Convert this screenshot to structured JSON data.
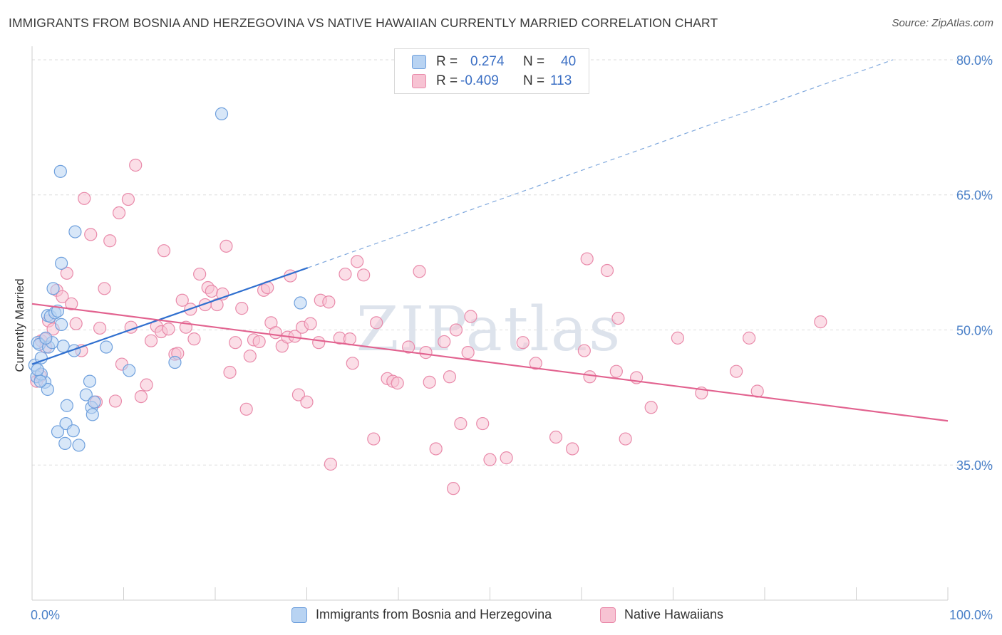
{
  "header": {
    "title": "IMMIGRANTS FROM BOSNIA AND HERZEGOVINA VS NATIVE HAWAIIAN CURRENTLY MARRIED CORRELATION CHART",
    "source": "Source: ZipAtlas.com"
  },
  "watermark": "ZIPatlas",
  "legend_stats": {
    "r_label": "R =",
    "n_label": "N =",
    "series1": {
      "r": "0.274",
      "n": "40"
    },
    "series2": {
      "r": "-0.409",
      "n": "113"
    }
  },
  "colors": {
    "blue_fill": "#b8d3f2",
    "blue_stroke": "#6fa0dd",
    "blue_line": "#2f6fcf",
    "pink_fill": "#f7c3d3",
    "pink_stroke": "#e98aaa",
    "pink_line": "#e2628f",
    "axis_text": "#4a80c8",
    "grid": "#dddddd"
  },
  "chart_data": {
    "type": "scatter",
    "title": "IMMIGRANTS FROM BOSNIA AND HERZEGOVINA VS NATIVE HAWAIIAN CURRENTLY MARRIED CORRELATION CHART",
    "xlabel": "",
    "ylabel": "Currently Married",
    "xlim": [
      0,
      100
    ],
    "ylim": [
      20,
      81.5
    ],
    "x_tick_labels": [
      "0.0%",
      "100.0%"
    ],
    "y_ticks": [
      35,
      50,
      65,
      80
    ],
    "y_tick_labels": [
      "35.0%",
      "50.0%",
      "65.0%",
      "80.0%"
    ],
    "grid": true,
    "series": [
      {
        "name": "Immigrants from Bosnia and Herzegovina",
        "color": "blue",
        "r": 0.274,
        "n": 40,
        "trend": {
          "x0": 0,
          "y0": 46.2,
          "x1": 30.1,
          "y1": 56.9,
          "dashed_to_x": 94,
          "dashed_to_y": 80.0
        },
        "points": [
          [
            0.5,
            44.8
          ],
          [
            0.3,
            46.1
          ],
          [
            0.6,
            48.6
          ],
          [
            0.8,
            48.4
          ],
          [
            1.0,
            46.9
          ],
          [
            1.4,
            44.2
          ],
          [
            1.7,
            43.4
          ],
          [
            1.8,
            48.1
          ],
          [
            1.7,
            51.6
          ],
          [
            2.0,
            51.5
          ],
          [
            2.3,
            54.6
          ],
          [
            2.5,
            51.9
          ],
          [
            2.8,
            52.1
          ],
          [
            3.2,
            50.6
          ],
          [
            3.4,
            48.2
          ],
          [
            3.2,
            57.4
          ],
          [
            3.1,
            67.6
          ],
          [
            3.8,
            41.6
          ],
          [
            3.7,
            39.6
          ],
          [
            3.6,
            37.4
          ],
          [
            2.8,
            38.7
          ],
          [
            4.5,
            38.8
          ],
          [
            5.1,
            37.2
          ],
          [
            4.6,
            47.7
          ],
          [
            4.7,
            60.9
          ],
          [
            5.9,
            42.8
          ],
          [
            6.3,
            44.3
          ],
          [
            6.5,
            41.4
          ],
          [
            6.6,
            40.6
          ],
          [
            6.8,
            42.0
          ],
          [
            8.1,
            48.1
          ],
          [
            10.6,
            45.5
          ],
          [
            15.6,
            46.4
          ],
          [
            20.7,
            74.0
          ],
          [
            29.3,
            53.0
          ],
          [
            1.0,
            45.1
          ],
          [
            0.6,
            45.6
          ],
          [
            2.2,
            48.6
          ],
          [
            0.9,
            44.3
          ],
          [
            1.5,
            49.1
          ]
        ]
      },
      {
        "name": "Native Hawaiians",
        "color": "pink",
        "r": -0.409,
        "n": 113,
        "trend": {
          "x0": 0,
          "y0": 52.9,
          "x1": 100,
          "y1": 39.9
        },
        "points": [
          [
            0.5,
            44.3
          ],
          [
            0.9,
            44.9
          ],
          [
            1.0,
            48.8
          ],
          [
            1.5,
            48.1
          ],
          [
            1.4,
            49.0
          ],
          [
            1.8,
            51.0
          ],
          [
            2.3,
            50.1
          ],
          [
            2.7,
            54.4
          ],
          [
            3.3,
            53.7
          ],
          [
            3.8,
            56.3
          ],
          [
            4.3,
            52.9
          ],
          [
            4.8,
            50.7
          ],
          [
            5.4,
            47.7
          ],
          [
            5.7,
            64.6
          ],
          [
            6.4,
            60.6
          ],
          [
            7.0,
            42.0
          ],
          [
            7.4,
            50.2
          ],
          [
            7.9,
            54.6
          ],
          [
            8.5,
            59.9
          ],
          [
            9.1,
            42.1
          ],
          [
            9.5,
            63.0
          ],
          [
            9.8,
            46.2
          ],
          [
            10.5,
            64.5
          ],
          [
            10.8,
            50.3
          ],
          [
            11.3,
            68.3
          ],
          [
            11.9,
            42.6
          ],
          [
            12.5,
            43.9
          ],
          [
            13.0,
            48.8
          ],
          [
            13.6,
            50.4
          ],
          [
            14.1,
            49.8
          ],
          [
            14.4,
            58.8
          ],
          [
            14.9,
            50.1
          ],
          [
            15.6,
            47.3
          ],
          [
            15.9,
            47.4
          ],
          [
            16.4,
            53.3
          ],
          [
            16.8,
            50.3
          ],
          [
            17.3,
            52.3
          ],
          [
            17.7,
            49.0
          ],
          [
            18.3,
            56.2
          ],
          [
            18.9,
            52.8
          ],
          [
            19.2,
            54.7
          ],
          [
            19.6,
            54.3
          ],
          [
            20.2,
            52.8
          ],
          [
            20.8,
            54.0
          ],
          [
            21.2,
            59.3
          ],
          [
            21.6,
            45.3
          ],
          [
            22.2,
            48.6
          ],
          [
            22.9,
            52.4
          ],
          [
            23.4,
            41.2
          ],
          [
            23.8,
            47.1
          ],
          [
            24.2,
            48.9
          ],
          [
            24.8,
            48.7
          ],
          [
            25.3,
            54.4
          ],
          [
            25.7,
            54.7
          ],
          [
            26.1,
            50.8
          ],
          [
            26.6,
            49.7
          ],
          [
            27.3,
            48.2
          ],
          [
            27.9,
            49.2
          ],
          [
            28.2,
            56.0
          ],
          [
            28.7,
            49.3
          ],
          [
            29.1,
            42.8
          ],
          [
            29.5,
            50.3
          ],
          [
            30.0,
            42.0
          ],
          [
            30.4,
            50.7
          ],
          [
            31.3,
            48.6
          ],
          [
            31.5,
            53.3
          ],
          [
            32.4,
            53.1
          ],
          [
            32.6,
            35.1
          ],
          [
            33.6,
            49.1
          ],
          [
            34.2,
            56.2
          ],
          [
            34.7,
            49.0
          ],
          [
            35.0,
            46.3
          ],
          [
            35.5,
            57.6
          ],
          [
            36.2,
            56.1
          ],
          [
            37.3,
            37.9
          ],
          [
            37.6,
            50.8
          ],
          [
            38.8,
            44.6
          ],
          [
            39.4,
            44.3
          ],
          [
            39.9,
            44.1
          ],
          [
            41.1,
            48.1
          ],
          [
            42.3,
            56.5
          ],
          [
            43.0,
            47.5
          ],
          [
            43.4,
            44.2
          ],
          [
            44.1,
            36.8
          ],
          [
            45.0,
            48.7
          ],
          [
            45.6,
            44.8
          ],
          [
            46.0,
            32.4
          ],
          [
            46.3,
            50.0
          ],
          [
            46.8,
            39.6
          ],
          [
            47.6,
            47.5
          ],
          [
            47.9,
            51.5
          ],
          [
            49.2,
            39.6
          ],
          [
            50.0,
            35.6
          ],
          [
            51.8,
            35.8
          ],
          [
            53.6,
            48.6
          ],
          [
            55.0,
            46.3
          ],
          [
            57.2,
            38.1
          ],
          [
            59.0,
            36.8
          ],
          [
            60.3,
            47.7
          ],
          [
            60.6,
            57.9
          ],
          [
            60.9,
            44.8
          ],
          [
            62.8,
            56.6
          ],
          [
            63.8,
            45.4
          ],
          [
            64.0,
            51.3
          ],
          [
            64.8,
            37.9
          ],
          [
            66.0,
            44.7
          ],
          [
            67.6,
            41.4
          ],
          [
            70.5,
            49.1
          ],
          [
            73.1,
            43.0
          ],
          [
            76.9,
            45.4
          ],
          [
            78.3,
            49.1
          ],
          [
            79.2,
            43.2
          ],
          [
            86.1,
            50.9
          ]
        ]
      }
    ]
  },
  "bottom_legend": {
    "series1": "Immigrants from Bosnia and Herzegovina",
    "series2": "Native Hawaiians"
  }
}
